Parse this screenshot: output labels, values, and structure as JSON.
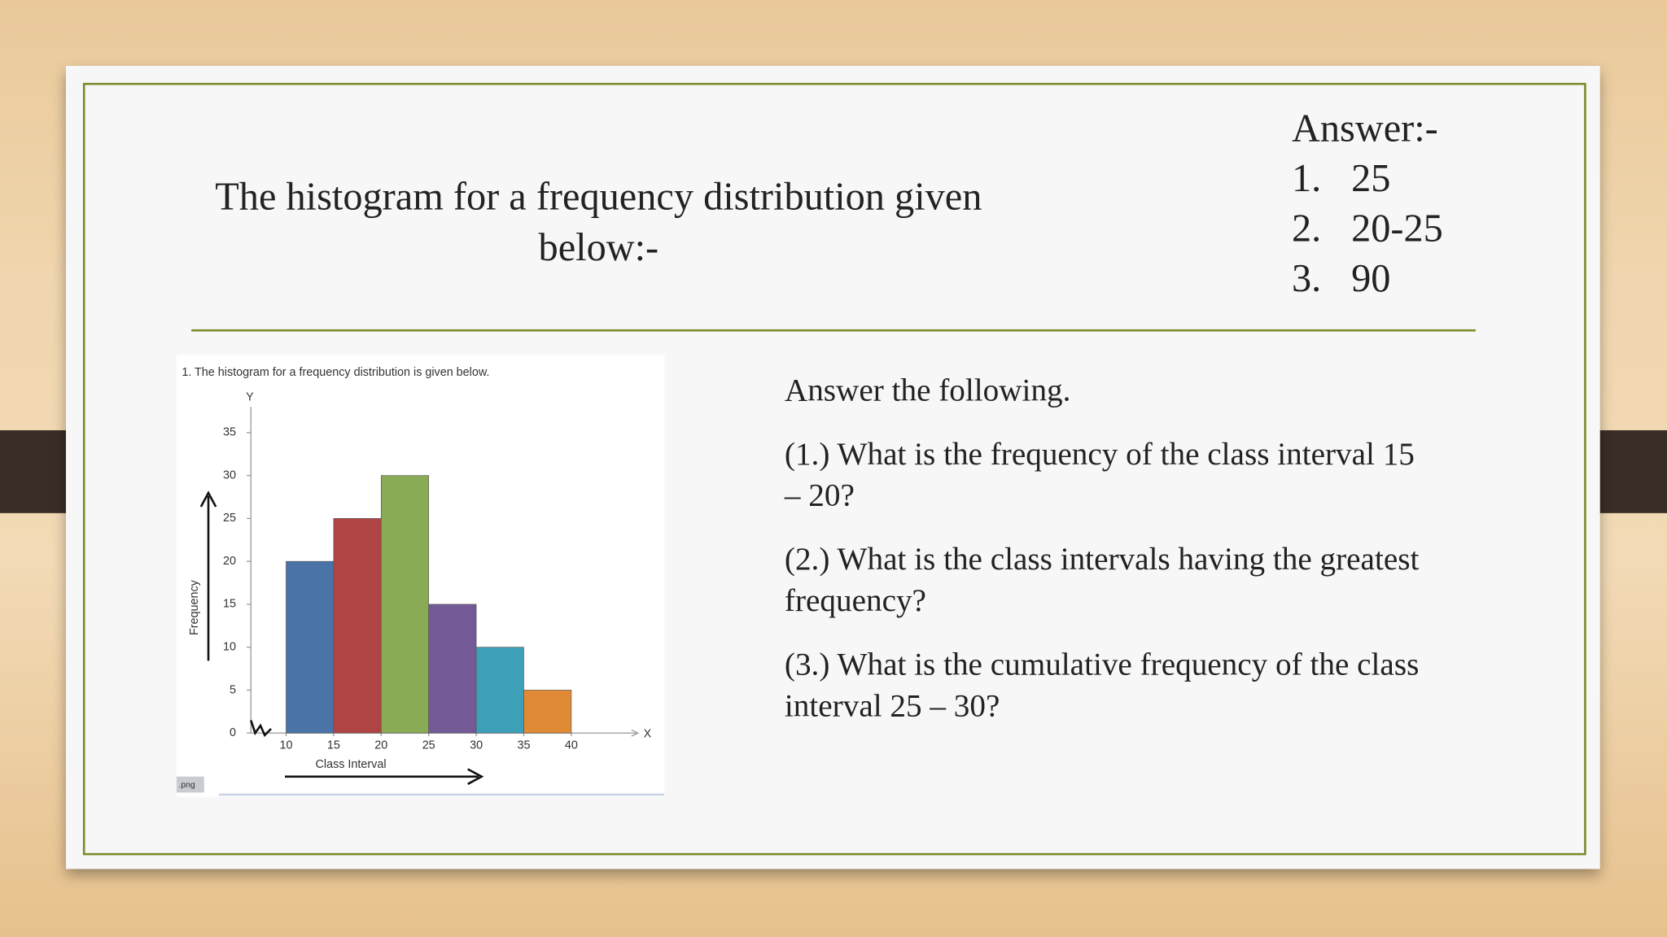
{
  "slide": {
    "title": "The histogram for a frequency distribution given below:-",
    "answer_heading": "Answer:-",
    "answers": [
      {
        "number": "1.",
        "text": "25"
      },
      {
        "number": "2.",
        "text": "20-25"
      },
      {
        "number": "3.",
        "text": "90"
      }
    ],
    "questions_heading": "Answer the following.",
    "questions": [
      "(1.) What is the frequency of the class interval 15 – 20?",
      "(2.) What is the class intervals having the greatest frequency?",
      "(3.) What is the cumulative frequency of the class interval 25 – 30?"
    ],
    "image_tag": ".png"
  },
  "chart_data": {
    "type": "histogram",
    "title": "1. The histogram for a frequency distribution is given below.",
    "bins": [
      10,
      15,
      20,
      25,
      30,
      35,
      40
    ],
    "values": [
      20,
      25,
      30,
      15,
      10,
      5
    ],
    "colors": [
      "#4a74a8",
      "#b04444",
      "#8aab55",
      "#735a96",
      "#3d9fb8",
      "#e08a35"
    ],
    "xlim": [
      6.3,
      47
    ],
    "ylim": [
      0,
      38
    ],
    "xticks": [
      10,
      15,
      20,
      25,
      30,
      35,
      40
    ],
    "yticks": [
      0,
      5,
      10,
      15,
      20,
      25,
      30,
      35
    ],
    "x_axis_letter": "X",
    "y_axis_letter": "Y",
    "xlabel": "Class Interval",
    "ylabel": "Frequency"
  }
}
